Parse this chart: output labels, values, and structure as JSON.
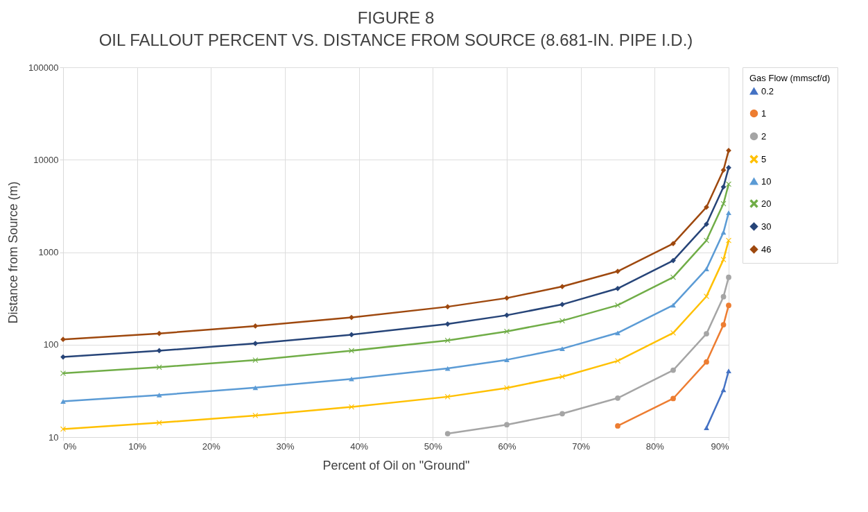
{
  "chart_data": {
    "type": "line",
    "title": "FIGURE 8",
    "subtitle": "OIL FALLOUT PERCENT VS. DISTANCE FROM SOURCE (8.681-IN. PIPE I.D.)",
    "xlabel": "Percent of Oil on \"Ground\"",
    "ylabel": "Distance from Source (m)",
    "legend_title": "Gas Flow (mmscf/d)",
    "x": [
      0,
      13,
      26,
      39,
      52,
      60,
      67.5,
      75,
      82.5,
      87,
      89.3,
      90
    ],
    "series": [
      {
        "name": "0.2",
        "color": "#4472c4",
        "marker": "triangle",
        "values": [
          null,
          null,
          null,
          null,
          null,
          null,
          null,
          null,
          null,
          12.6,
          32.4,
          52
        ]
      },
      {
        "name": "1",
        "color": "#ed7d31",
        "marker": "circle",
        "values": [
          null,
          null,
          null,
          null,
          null,
          null,
          null,
          13.2,
          26.1,
          65,
          164,
          266
        ]
      },
      {
        "name": "2",
        "color": "#a5a5a5",
        "marker": "circle",
        "values": [
          null,
          null,
          null,
          null,
          10.9,
          13.6,
          17.9,
          26.4,
          52.9,
          131,
          330,
          535
        ]
      },
      {
        "name": "5",
        "color": "#ffc000",
        "marker": "cross",
        "values": [
          12.2,
          14.3,
          17.1,
          21.2,
          27.3,
          34,
          45,
          66.8,
          134,
          333,
          832,
          1340
        ]
      },
      {
        "name": "10",
        "color": "#5b9bd5",
        "marker": "triangle",
        "values": [
          24.3,
          28.5,
          34.2,
          42.6,
          55.3,
          68.5,
          90.4,
          134,
          267,
          658,
          1640,
          2670
        ]
      },
      {
        "name": "20",
        "color": "#70ad47",
        "marker": "cross",
        "values": [
          49,
          57,
          68,
          86,
          111,
          139,
          181,
          267,
          535,
          1340,
          3350,
          5450
        ]
      },
      {
        "name": "30",
        "color": "#264478",
        "marker": "diamond",
        "values": [
          73.5,
          86,
          103,
          128,
          167,
          208,
          272,
          405,
          811,
          2010,
          5080,
          8200
        ]
      },
      {
        "name": "46",
        "color": "#9e480e",
        "marker": "diamond",
        "values": [
          114,
          132,
          159,
          197,
          257,
          319,
          425,
          621,
          1240,
          3070,
          7730,
          12600
        ]
      }
    ],
    "xlim": [
      0,
      90
    ],
    "xticks": [
      {
        "value": 0,
        "label": "0%"
      },
      {
        "value": 10,
        "label": "10%"
      },
      {
        "value": 20,
        "label": "20%"
      },
      {
        "value": 30,
        "label": "30%"
      },
      {
        "value": 40,
        "label": "40%"
      },
      {
        "value": 50,
        "label": "50%"
      },
      {
        "value": 60,
        "label": "60%"
      },
      {
        "value": 70,
        "label": "70%"
      },
      {
        "value": 80,
        "label": "80%"
      },
      {
        "value": 90,
        "label": "90%"
      }
    ],
    "ylim": [
      10,
      100000
    ],
    "yticks": [
      10,
      100,
      1000,
      10000,
      100000
    ],
    "log": true,
    "grid": true,
    "legend": "right",
    "line_style": "solid"
  }
}
